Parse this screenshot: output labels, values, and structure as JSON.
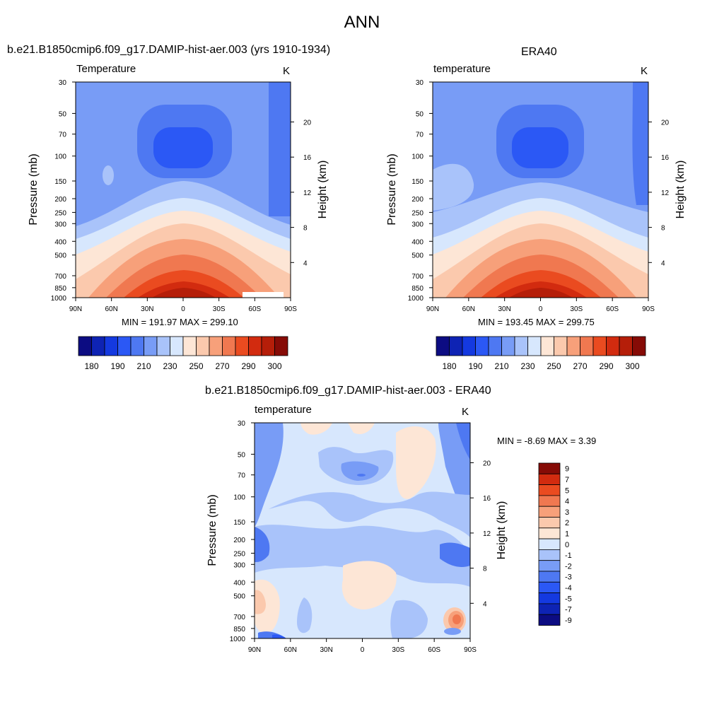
{
  "figure": {
    "title": "ANN"
  },
  "colors": {
    "abs": [
      "#0c0c82",
      "#0e23b4",
      "#1439e0",
      "#2b58f5",
      "#4e78f2",
      "#789cf6",
      "#a9c3fa",
      "#d7e7fd",
      "#fde6d6",
      "#fbc9ad",
      "#f7a07a",
      "#f07850",
      "#ea4b20",
      "#d22b0f",
      "#b51e09",
      "#860b06"
    ],
    "diff": [
      "#0c0c82",
      "#0e23b4",
      "#1439e0",
      "#2b58f5",
      "#4e78f2",
      "#789cf6",
      "#a9c3fa",
      "#d7e7fd",
      "#fde6d6",
      "#fbc9ad",
      "#f7a07a",
      "#f07850",
      "#ea4b20",
      "#d22b0f",
      "#860b06"
    ]
  },
  "chart_data": [
    {
      "type": "heatmap",
      "panel_title": "b.e21.B1850cmip6.f09_g17.DAMIP-hist-aer.003 (yrs 1910-1934)",
      "field": "Temperature",
      "unit": "K",
      "ylabel": "Pressure (mb)",
      "ylabel_right": "Height (km)",
      "x_ticks": [
        "90N",
        "60N",
        "30N",
        "0",
        "30S",
        "60S",
        "90S"
      ],
      "y_ticks": [
        30,
        50,
        70,
        100,
        150,
        200,
        250,
        300,
        400,
        500,
        700,
        850,
        1000
      ],
      "y_ticks_right": [
        4,
        8,
        12,
        16,
        20
      ],
      "min_max": "MIN = 191.97  MAX = 299.10",
      "colorbar_ticks": [
        180,
        190,
        210,
        230,
        250,
        270,
        290,
        300
      ]
    },
    {
      "type": "heatmap",
      "panel_title": "ERA40",
      "field": "temperature",
      "unit": "K",
      "ylabel": "Pressure (mb)",
      "ylabel_right": "Height (km)",
      "x_ticks": [
        "90N",
        "60N",
        "30N",
        "0",
        "30S",
        "60S",
        "90S"
      ],
      "y_ticks": [
        30,
        50,
        70,
        100,
        150,
        200,
        250,
        300,
        400,
        500,
        700,
        850,
        1000
      ],
      "y_ticks_right": [
        4,
        8,
        12,
        16,
        20
      ],
      "min_max": "MIN = 193.45  MAX = 299.75",
      "colorbar_ticks": [
        180,
        190,
        210,
        230,
        250,
        270,
        290,
        300
      ]
    },
    {
      "type": "heatmap",
      "panel_title": "b.e21.B1850cmip6.f09_g17.DAMIP-hist-aer.003 - ERA40",
      "field": "temperature",
      "unit": "K",
      "ylabel": "Pressure (mb)",
      "ylabel_right": "Height (km)",
      "x_ticks": [
        "90N",
        "60N",
        "30N",
        "0",
        "30S",
        "60S",
        "90S"
      ],
      "y_ticks": [
        30,
        50,
        70,
        100,
        150,
        200,
        250,
        300,
        400,
        500,
        700,
        850,
        1000
      ],
      "y_ticks_right": [
        4,
        8,
        12,
        16,
        20
      ],
      "min_max": "MIN =  -8.69  MAX =   3.39",
      "colorbar_ticks": [
        9,
        7,
        5,
        4,
        3,
        2,
        1,
        0,
        -1,
        -2,
        -3,
        -4,
        -5,
        -7,
        -9
      ]
    }
  ]
}
